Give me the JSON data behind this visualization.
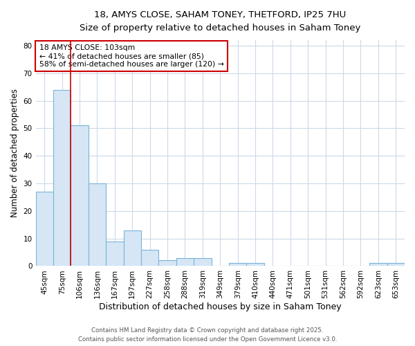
{
  "title_line1": "18, AMYS CLOSE, SAHAM TONEY, THETFORD, IP25 7HU",
  "title_line2": "Size of property relative to detached houses in Saham Toney",
  "xlabel": "Distribution of detached houses by size in Saham Toney",
  "ylabel": "Number of detached properties",
  "categories": [
    "45sqm",
    "75sqm",
    "106sqm",
    "136sqm",
    "167sqm",
    "197sqm",
    "227sqm",
    "258sqm",
    "288sqm",
    "319sqm",
    "349sqm",
    "379sqm",
    "410sqm",
    "440sqm",
    "471sqm",
    "501sqm",
    "531sqm",
    "562sqm",
    "592sqm",
    "623sqm",
    "653sqm"
  ],
  "values": [
    27,
    64,
    51,
    30,
    9,
    13,
    6,
    2,
    3,
    3,
    0,
    1,
    1,
    0,
    0,
    0,
    0,
    0,
    0,
    1,
    1
  ],
  "bar_color": "#d6e6f5",
  "bar_edge_color": "#7ab3d9",
  "annotation_line1": "18 AMYS CLOSE: 103sqm",
  "annotation_line2": "← 41% of detached houses are smaller (85)",
  "annotation_line3": "58% of semi-detached houses are larger (120) →",
  "annotation_box_color": "#ffffff",
  "annotation_border_color": "#cc0000",
  "red_line_index": 2,
  "ylim": [
    0,
    82
  ],
  "yticks": [
    0,
    10,
    20,
    30,
    40,
    50,
    60,
    70,
    80
  ],
  "footer_line1": "Contains HM Land Registry data © Crown copyright and database right 2025.",
  "footer_line2": "Contains public sector information licensed under the Open Government Licence v3.0.",
  "bg_color": "#ffffff",
  "plot_bg_color": "#ffffff",
  "grid_color": "#ccd9e8"
}
